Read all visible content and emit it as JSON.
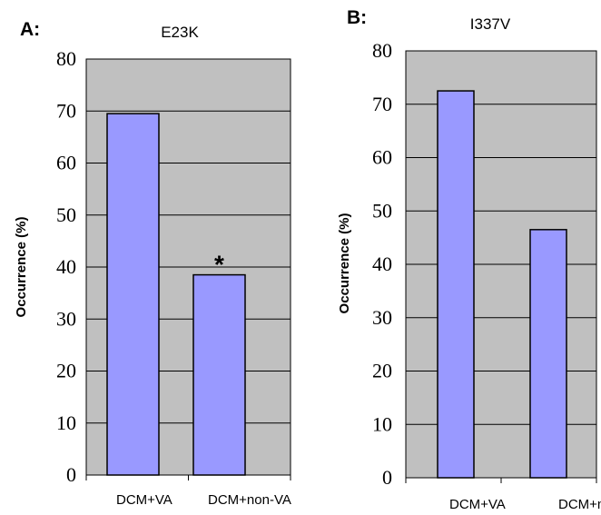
{
  "chart_data": [
    {
      "type": "bar",
      "panel": "A:",
      "title": "E23K",
      "ylabel": "Occurrence (%)",
      "xlabel": "",
      "categories": [
        "DCM+VA",
        "DCM+non-VA"
      ],
      "values": [
        69.5,
        38.5
      ],
      "ylim": [
        0,
        80
      ],
      "yticks": [
        0,
        10,
        20,
        30,
        40,
        50,
        60,
        70,
        80
      ],
      "grid": true,
      "annotations": [
        {
          "category": "DCM+non-VA",
          "text": "*"
        }
      ]
    },
    {
      "type": "bar",
      "panel": "B:",
      "title": "I337V",
      "ylabel": "Occurrence (%)",
      "xlabel": "",
      "categories": [
        "DCM+VA",
        "DCM+non-VA"
      ],
      "values": [
        72.5,
        46.5
      ],
      "ylim": [
        0,
        80
      ],
      "yticks": [
        0,
        10,
        20,
        30,
        40,
        50,
        60,
        70,
        80
      ],
      "grid": true,
      "annotations": []
    }
  ],
  "colors": {
    "plot_background": "#c0c0c0",
    "bar_fill": "#9999ff",
    "bar_stroke": "#000000",
    "grid_line": "#000000"
  }
}
